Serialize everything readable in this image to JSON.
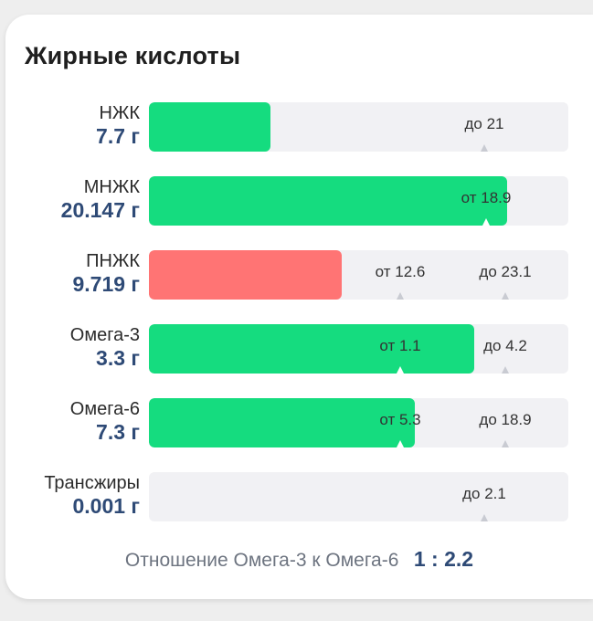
{
  "card": {
    "title": "Жирные кислоты"
  },
  "rows": [
    {
      "name": "НЖК",
      "value": "7.7 г",
      "fill_fraction": 0.29,
      "status": "ok",
      "markers": [
        {
          "text": "до 21",
          "pos": 0.8
        }
      ]
    },
    {
      "name": "МНЖК",
      "value": "20.147 г",
      "fill_fraction": 0.855,
      "status": "ok",
      "markers": [
        {
          "text": "от 18.9",
          "pos": 0.805
        }
      ]
    },
    {
      "name": "ПНЖК",
      "value": "9.719 г",
      "fill_fraction": 0.46,
      "status": "bad",
      "markers": [
        {
          "text": "от 12.6",
          "pos": 0.6
        },
        {
          "text": "до 23.1",
          "pos": 0.85
        }
      ]
    },
    {
      "name": "Омега-3",
      "value": "3.3 г",
      "fill_fraction": 0.775,
      "status": "ok",
      "markers": [
        {
          "text": "от 1.1",
          "pos": 0.6
        },
        {
          "text": "до 4.2",
          "pos": 0.85
        }
      ]
    },
    {
      "name": "Омега-6",
      "value": "7.3 г",
      "fill_fraction": 0.635,
      "status": "ok",
      "markers": [
        {
          "text": "от 5.3",
          "pos": 0.6
        },
        {
          "text": "до 18.9",
          "pos": 0.85
        }
      ]
    },
    {
      "name": "Трансжиры",
      "value": "0.001 г",
      "fill_fraction": 0.0,
      "status": "ok",
      "markers": [
        {
          "text": "до 2.1",
          "pos": 0.8
        }
      ]
    }
  ],
  "footer": {
    "label": "Отношение Омега-3 к Омега-6",
    "value": "1 : 2.2"
  },
  "colors": {
    "ok": "#15dc7f",
    "bad": "#ff7474",
    "value_text": "#2e4a76",
    "track": "#f1f1f4"
  }
}
